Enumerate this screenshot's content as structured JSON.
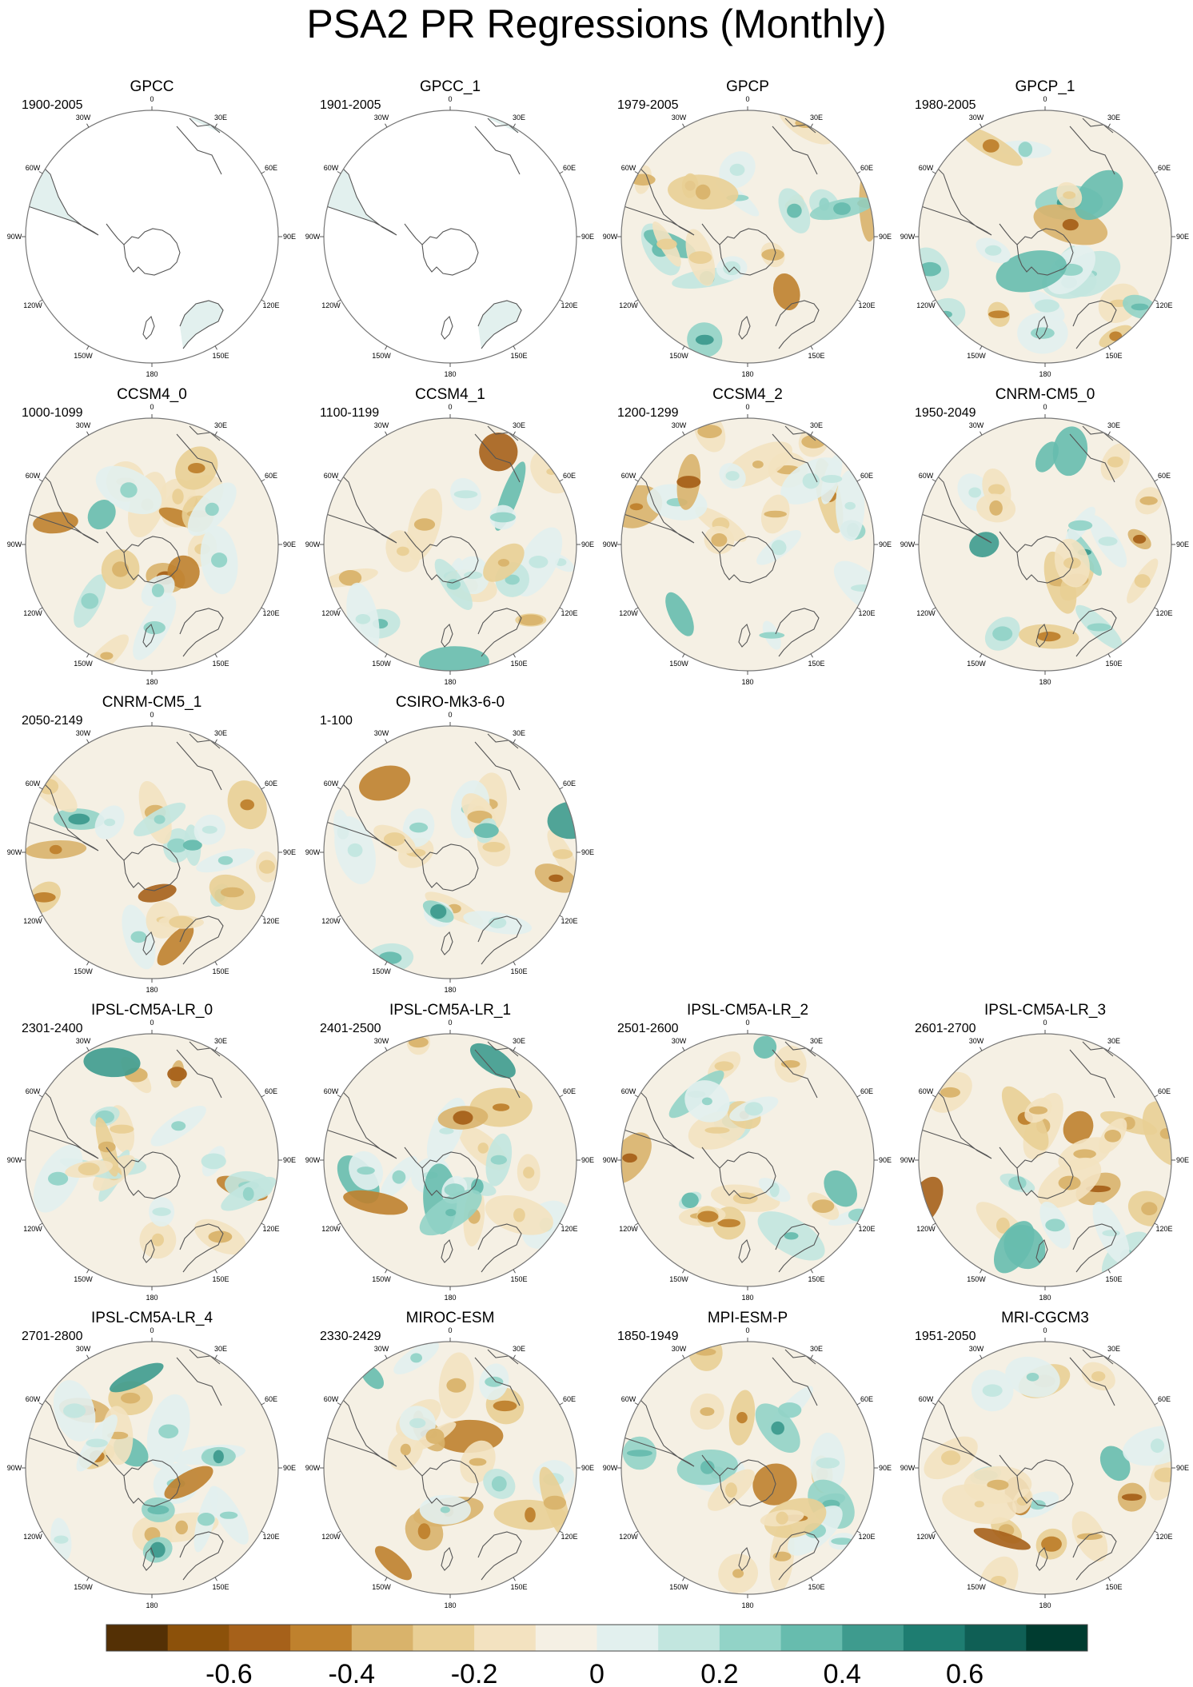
{
  "title": "PSA2 PR Regressions (Monthly)",
  "panels": [
    {
      "name": "GPCC",
      "period": "1900-2005",
      "land": "gpcc"
    },
    {
      "name": "GPCC_1",
      "period": "1901-2005",
      "land": "gpcc"
    },
    {
      "name": "GPCP",
      "period": "1979-2005",
      "land": "gpcp"
    },
    {
      "name": "GPCP_1",
      "period": "1980-2005",
      "land": "gpcp"
    },
    {
      "name": "CCSM4_0",
      "period": "1000-1099"
    },
    {
      "name": "CCSM4_1",
      "period": "1100-1199"
    },
    {
      "name": "CCSM4_2",
      "period": "1200-1299"
    },
    {
      "name": "CNRM-CM5_0",
      "period": "1950-2049"
    },
    {
      "name": "CNRM-CM5_1",
      "period": "2050-2149"
    },
    {
      "name": "CSIRO-Mk3-6-0",
      "period": "1-100"
    },
    {
      "name": "IPSL-CM5A-LR_0",
      "period": "2301-2400"
    },
    {
      "name": "IPSL-CM5A-LR_1",
      "period": "2401-2500"
    },
    {
      "name": "IPSL-CM5A-LR_2",
      "period": "2501-2600"
    },
    {
      "name": "IPSL-CM5A-LR_3",
      "period": "2601-2700"
    },
    {
      "name": "IPSL-CM5A-LR_4",
      "period": "2701-2800"
    },
    {
      "name": "MIROC-ESM",
      "period": "2330-2429"
    },
    {
      "name": "MPI-ESM-P",
      "period": "1850-1949"
    },
    {
      "name": "MRI-CGCM3",
      "period": "1951-2050"
    }
  ],
  "map_labels": {
    "top": "0",
    "bottom": "180",
    "left": "90W",
    "right": "90E",
    "upper_left_1": "30W",
    "upper_left_2": "60W",
    "upper_right_1": "30E",
    "upper_right_2": "60E",
    "lower_left_1": "120W",
    "lower_left_2": "150W",
    "lower_right_1": "120E",
    "lower_right_2": "150E"
  },
  "colorbar": {
    "colors": [
      "#543005",
      "#8c510a",
      "#a6611a",
      "#bf812d",
      "#d9b36b",
      "#e9cf95",
      "#f3e2c0",
      "#f5f0e4",
      "#e2f0ee",
      "#c2e6df",
      "#92d3c7",
      "#67bcae",
      "#3e9b8e",
      "#1e7d71",
      "#0f5f55",
      "#003c30"
    ],
    "tick_labels": [
      "-0.6",
      "-0.4",
      "-0.2",
      "0",
      "0.2",
      "0.4",
      "0.6"
    ],
    "tick_values": [
      -0.6,
      -0.4,
      -0.2,
      0,
      0.2,
      0.4,
      0.6
    ],
    "range": [
      -0.8,
      0.8
    ]
  }
}
